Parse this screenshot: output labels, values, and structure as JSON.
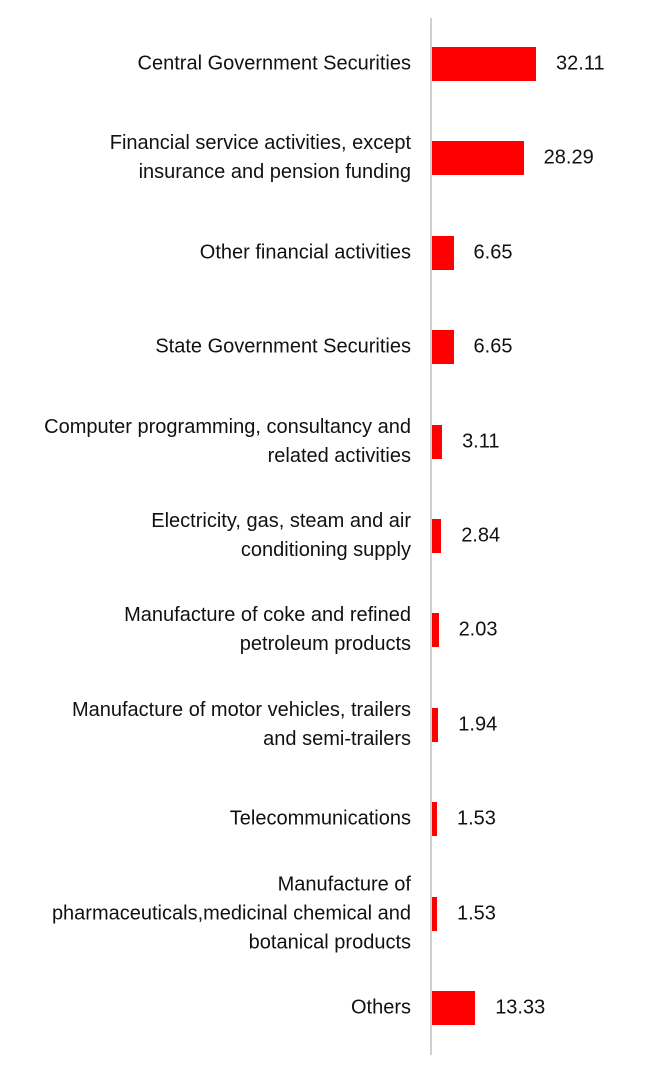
{
  "chart_data": {
    "type": "bar",
    "orientation": "horizontal",
    "categories": [
      "Central Government Securities",
      "Financial service activities, except insurance and pension funding",
      "Other financial activities",
      "State Government Securities",
      "Computer programming, consultancy and related activities",
      "Electricity, gas, steam and air conditioning supply",
      "Manufacture of coke and refined petroleum products",
      "Manufacture of motor vehicles, trailers and semi-trailers",
      "Telecommunications",
      "Manufacture of pharmaceuticals,medicinal chemical and botanical products",
      "Others"
    ],
    "values": [
      32.11,
      28.29,
      6.65,
      6.65,
      3.11,
      2.84,
      2.03,
      1.94,
      1.53,
      1.53,
      13.33
    ],
    "value_labels": [
      "32.11",
      "28.29",
      "6.65",
      "6.65",
      "3.11",
      "2.84",
      "2.03",
      "1.94",
      "1.53",
      "1.53",
      "13.33"
    ],
    "color": "#ff0000"
  }
}
